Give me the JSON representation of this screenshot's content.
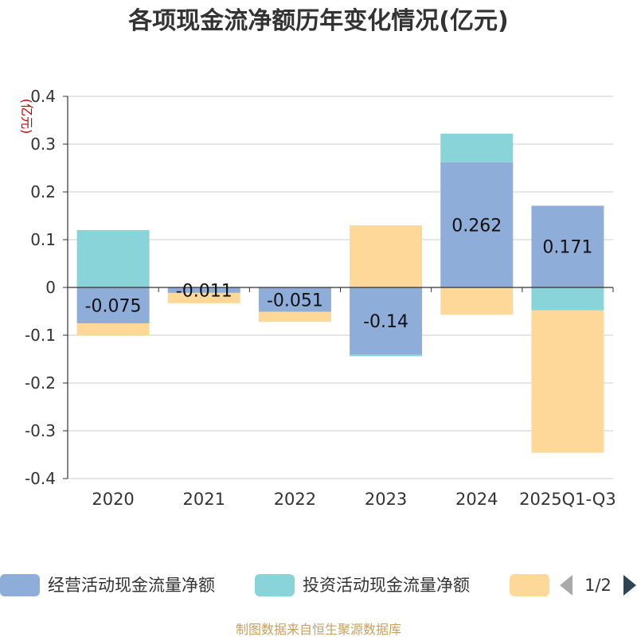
{
  "chart_data": {
    "type": "bar",
    "stacked": true,
    "title": "各项现金流净额历年变化情况(亿元)",
    "ylabel": "(亿元)",
    "xlabel": "",
    "categories": [
      "2020",
      "2021",
      "2022",
      "2023",
      "2024",
      "2025Q1-Q3"
    ],
    "ylim": [
      -0.4,
      0.4
    ],
    "yticks": [
      0.4,
      0.3,
      0.2,
      0.1,
      0,
      -0.1,
      -0.2,
      -0.3,
      -0.4
    ],
    "ytick_labels": [
      "0.4",
      "0.3",
      "0.2",
      "0.1",
      "0",
      "-0.1",
      "-0.2",
      "-0.3",
      "-0.4"
    ],
    "grid": true,
    "legend_position": "bottom",
    "series": [
      {
        "name": "经营活动现金流量净额",
        "color": "#8eadd9",
        "values": [
          -0.075,
          -0.011,
          -0.051,
          -0.14,
          0.262,
          0.171
        ],
        "labels": [
          "-0.075",
          "-0.011",
          "-0.051",
          "-0.14",
          "0.262",
          "0.171"
        ]
      },
      {
        "name": "投资活动现金流量净额",
        "color": "#88d4d8",
        "values": [
          0.12,
          -0.001,
          0.0,
          -0.004,
          0.06,
          -0.048
        ]
      },
      {
        "name": "",
        "color": "#fdd898",
        "values": [
          -0.025,
          -0.021,
          -0.021,
          0.13,
          -0.057,
          -0.298
        ]
      }
    ]
  },
  "legend_pager": {
    "text": "1/2",
    "prev_color": "#aaaaaa",
    "next_color": "#2f4554"
  },
  "footer": "制图数据来自恒生聚源数据库"
}
